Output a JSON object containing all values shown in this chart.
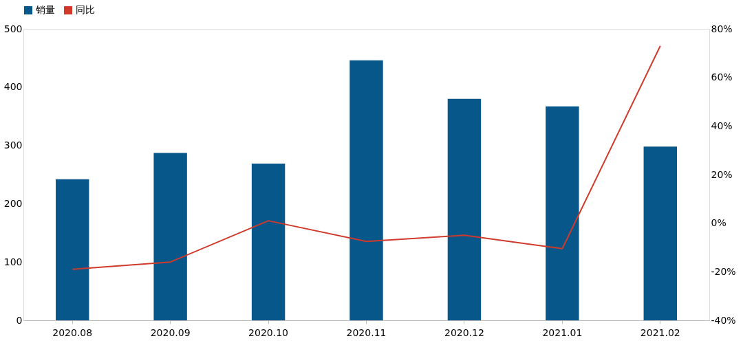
{
  "chart_data": {
    "type": "bar",
    "categories": [
      "2020.08",
      "2020.09",
      "2020.10",
      "2020.11",
      "2020.12",
      "2021.01",
      "2021.02"
    ],
    "series": [
      {
        "name": "销量",
        "color": "#08578a",
        "values": [
          242,
          287,
          269,
          446,
          380,
          367,
          298
        ]
      },
      {
        "name": "同比",
        "type": "line",
        "axis": "y2",
        "color": "#d03a2b",
        "values": [
          -19,
          -16,
          1,
          -7.5,
          -5,
          -10.5,
          73
        ]
      }
    ],
    "ylim": [
      0,
      500
    ],
    "yticks": [
      0,
      100,
      200,
      300,
      400,
      500
    ],
    "y2lim": [
      -40,
      80
    ],
    "y2ticks": [
      {
        "value": -40,
        "label": "-40%"
      },
      {
        "value": -20,
        "label": "-20%"
      },
      {
        "value": 0,
        "label": "0%"
      },
      {
        "value": 20,
        "label": "20%"
      },
      {
        "value": 40,
        "label": "40%"
      },
      {
        "value": 60,
        "label": "60%"
      },
      {
        "value": 80,
        "label": "80%"
      }
    ],
    "legend": "top",
    "grid": false,
    "marker": "none",
    "line_style": "solid"
  }
}
